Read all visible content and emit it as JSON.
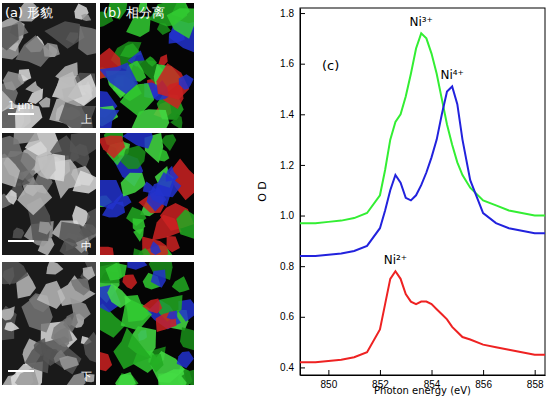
{
  "chart_data": {
    "type": "line",
    "title": "(c)",
    "x_label": "Photon energy (eV)",
    "y_label": "O D",
    "xlim": [
      848.9,
      858.4
    ],
    "ylim": [
      0.37,
      1.82
    ],
    "xticks": [
      850,
      852,
      854,
      856,
      858
    ],
    "yticks": [
      0.4,
      0.6,
      0.8,
      {
        "value": 1,
        "label": "1.0"
      },
      1.2,
      1.4,
      1.6,
      1.8
    ],
    "x": [
      848.9,
      849.5,
      850,
      850.5,
      851,
      851.5,
      852,
      852.2,
      852.4,
      852.6,
      852.8,
      853,
      853.2,
      853.4,
      853.6,
      853.8,
      854,
      854.2,
      854.4,
      854.6,
      854.8,
      855,
      855.2,
      855.5,
      856,
      856.5,
      857,
      857.5,
      858,
      858.4
    ],
    "series": [
      {
        "name": "Ni³⁺",
        "color": "#33ee33",
        "values": [
          0.97,
          0.97,
          0.975,
          0.98,
          0.99,
          1.01,
          1.08,
          1.18,
          1.3,
          1.37,
          1.4,
          1.47,
          1.56,
          1.66,
          1.72,
          1.7,
          1.64,
          1.56,
          1.46,
          1.36,
          1.28,
          1.21,
          1.16,
          1.11,
          1.06,
          1.04,
          1.02,
          1.01,
          1.0,
          1.0
        ]
      },
      {
        "name": "Ni⁴⁺",
        "color": "#2222dd",
        "values": [
          0.84,
          0.84,
          0.845,
          0.85,
          0.86,
          0.88,
          0.95,
          1.02,
          1.1,
          1.16,
          1.13,
          1.07,
          1.06,
          1.08,
          1.12,
          1.17,
          1.23,
          1.3,
          1.4,
          1.49,
          1.51,
          1.44,
          1.3,
          1.14,
          1.01,
          0.97,
          0.95,
          0.94,
          0.93,
          0.93
        ]
      },
      {
        "name": "Ni²⁺",
        "color": "#ee2222",
        "values": [
          0.42,
          0.42,
          0.425,
          0.43,
          0.44,
          0.46,
          0.55,
          0.65,
          0.75,
          0.78,
          0.75,
          0.69,
          0.66,
          0.65,
          0.66,
          0.66,
          0.65,
          0.63,
          0.61,
          0.59,
          0.56,
          0.54,
          0.52,
          0.51,
          0.49,
          0.48,
          0.47,
          0.46,
          0.45,
          0.45
        ]
      }
    ]
  },
  "image_panels": {
    "a": {
      "label": "(a) 形貌",
      "scale_bar": "1 μm",
      "rows": [
        "上",
        "中",
        "下"
      ]
    },
    "b": {
      "label": "(b) 相分离"
    }
  }
}
